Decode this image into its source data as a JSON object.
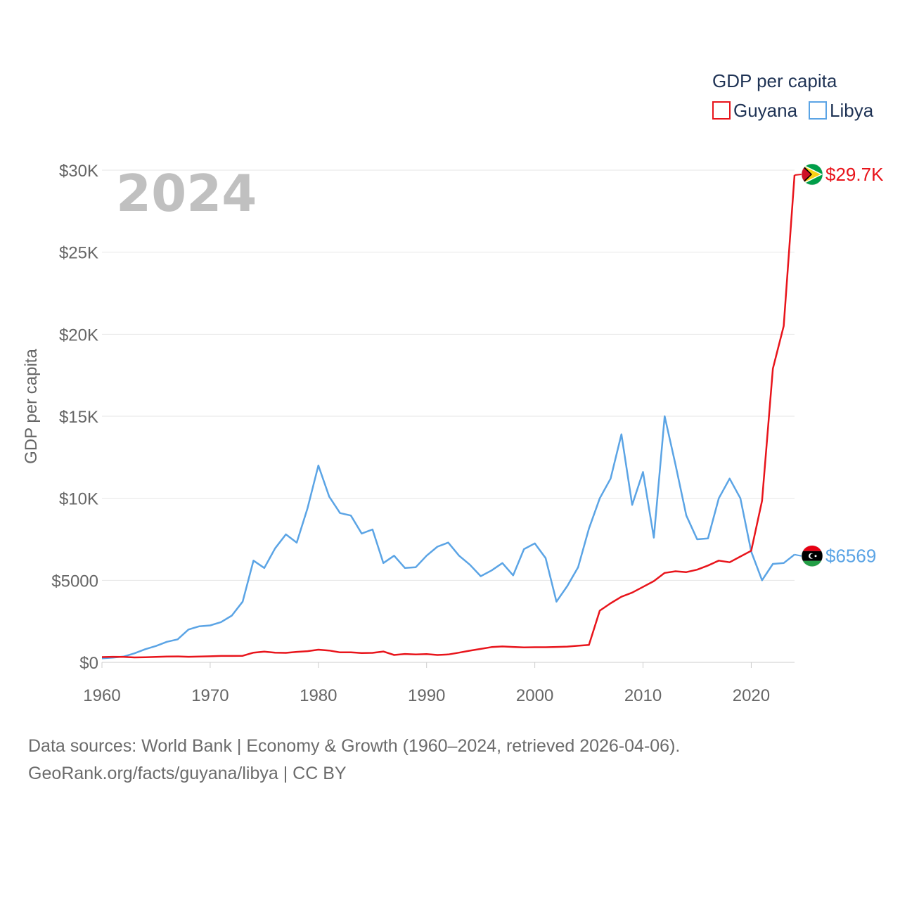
{
  "chart_data": {
    "type": "line",
    "year_label": "2024",
    "ylabel": "GDP per capita",
    "xlim": [
      1960,
      2025
    ],
    "ylim": [
      0,
      30000
    ],
    "x_ticks": [
      {
        "value": 1960,
        "label": "1960"
      },
      {
        "value": 1970,
        "label": "1970"
      },
      {
        "value": 1980,
        "label": "1980"
      },
      {
        "value": 1990,
        "label": "1990"
      },
      {
        "value": 2000,
        "label": "2000"
      },
      {
        "value": 2010,
        "label": "2010"
      },
      {
        "value": 2020,
        "label": "2020"
      }
    ],
    "y_ticks": [
      {
        "value": 0,
        "label": "$0"
      },
      {
        "value": 5000,
        "label": "$5000"
      },
      {
        "value": 10000,
        "label": "$10K"
      },
      {
        "value": 15000,
        "label": "$15K"
      },
      {
        "value": 20000,
        "label": "$20K"
      },
      {
        "value": 25000,
        "label": "$25K"
      },
      {
        "value": 30000,
        "label": "$30K"
      }
    ],
    "legend": {
      "title": "GDP per capita",
      "position": "top-right"
    },
    "series": [
      {
        "name": "Guyana",
        "color": "#e8141b",
        "end_label": "$29.7K",
        "flag": "guyana-flag",
        "start_year": 1960,
        "values": [
          320,
          340,
          330,
          300,
          310,
          330,
          350,
          360,
          340,
          350,
          370,
          390,
          390,
          400,
          590,
          650,
          590,
          580,
          640,
          680,
          770,
          720,
          610,
          610,
          570,
          580,
          660,
          450,
          510,
          480,
          500,
          450,
          480,
          590,
          710,
          820,
          930,
          970,
          940,
          910,
          920,
          920,
          940,
          960,
          1010,
          1060,
          3150,
          3600,
          4000,
          4250,
          4600,
          4950,
          5450,
          5550,
          5500,
          5650,
          5900,
          6200,
          6100,
          6450,
          6800,
          9850,
          17900,
          20500,
          29700
        ]
      },
      {
        "name": "Libya",
        "color": "#5ba4e5",
        "end_label": "$6569",
        "flag": "libya-flag",
        "start_year": 1960,
        "values": [
          250,
          290,
          350,
          550,
          800,
          1000,
          1250,
          1400,
          2000,
          2200,
          2250,
          2450,
          2850,
          3700,
          6200,
          5750,
          6950,
          7800,
          7300,
          9400,
          12000,
          10100,
          9100,
          8950,
          7850,
          8100,
          6050,
          6500,
          5750,
          5800,
          6500,
          7050,
          7300,
          6500,
          5950,
          5250,
          5600,
          6050,
          5300,
          6900,
          7250,
          6350,
          3700,
          4650,
          5800,
          8150,
          10000,
          11200,
          13900,
          9600,
          11600,
          7600,
          15000,
          12050,
          8950,
          7500,
          7550,
          10000,
          11200,
          10000,
          6750,
          5000,
          6000,
          6050,
          6569
        ]
      }
    ]
  },
  "source": {
    "line1": "Data sources: World Bank | Economy & Growth (1960–2024, retrieved 2026-04-06).",
    "line2": "GeoRank.org/facts/guyana/libya | CC BY"
  }
}
